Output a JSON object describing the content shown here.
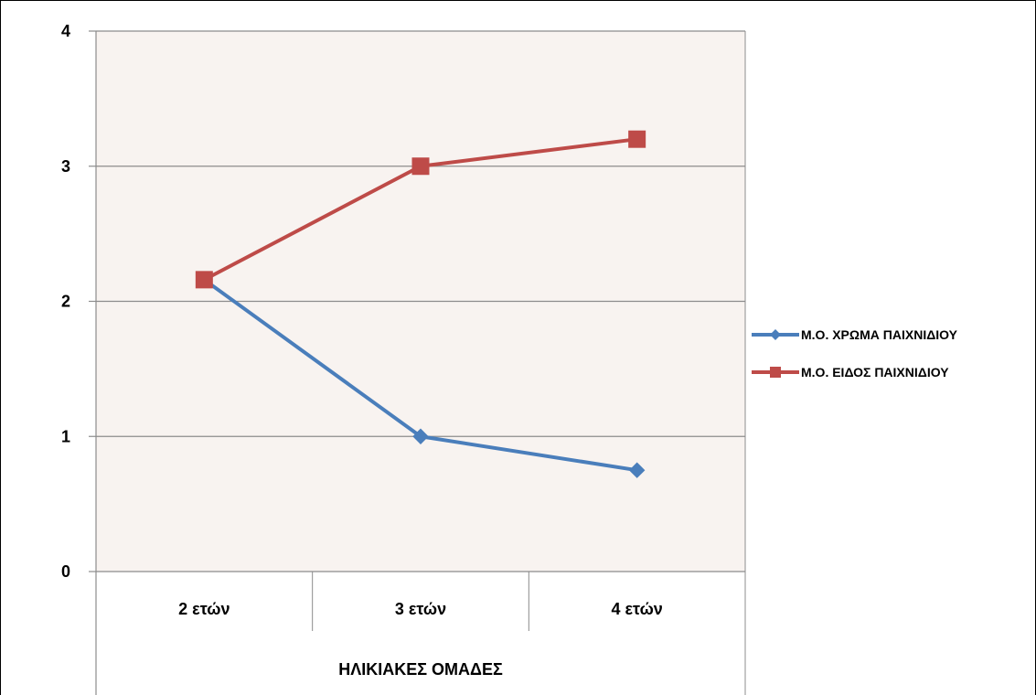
{
  "chart_data": {
    "type": "line",
    "categories": [
      "2 ετών",
      "3 ετών",
      "4 ετών"
    ],
    "category_group_label": "ΗΛΙΚΙΑΚΕΣ ΟΜΑΔΕΣ",
    "series": [
      {
        "name": "Μ.Ο. ΧΡΩΜΑ ΠΑΙΧΝΙΔΙΟΥ",
        "values": [
          2.16,
          1.0,
          0.75
        ],
        "color": "#4a7ebb",
        "marker": "diamond"
      },
      {
        "name": "Μ.Ο. ΕΙΔΟΣ ΠΑΙΧΝΙΔΙΟΥ",
        "values": [
          2.16,
          3.0,
          3.2
        ],
        "color": "#be4b48",
        "marker": "square"
      }
    ],
    "ylim": [
      0,
      4
    ],
    "yticks": [
      "0",
      "1",
      "2",
      "3",
      "4"
    ],
    "grid": true,
    "legend_position": "right",
    "plot_background": "#f8f3f0"
  }
}
